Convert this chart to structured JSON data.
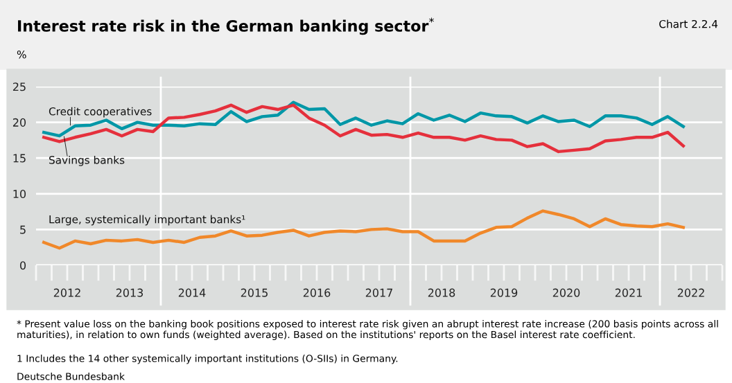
{
  "chart_data": {
    "type": "line",
    "title": "Interest rate risk in the German banking sector$^{*}$",
    "subtitle": "Chart 2.2.4",
    "ylabel": "%",
    "x": [
      2012.125,
      2012.375,
      2012.625,
      2012.875,
      2013.125,
      2013.375,
      2013.625,
      2013.875,
      2014.125,
      2014.375,
      2014.625,
      2014.875,
      2015.125,
      2015.375,
      2015.625,
      2015.875,
      2016.125,
      2016.375,
      2016.625,
      2016.875,
      2017.125,
      2017.375,
      2017.625,
      2017.875,
      2018.125,
      2018.375,
      2018.625,
      2018.875,
      2019.125,
      2019.375,
      2019.625,
      2019.875,
      2020.125,
      2020.375,
      2020.625,
      2020.875,
      2021.125,
      2021.375,
      2021.625,
      2021.875,
      2022.125,
      2022.375
    ],
    "series": [
      {
        "name": "Credit cooperatives",
        "color": "#0097a7",
        "values": [
          18.6,
          18.1,
          19.5,
          19.6,
          20.3,
          19.1,
          20.0,
          19.6,
          19.6,
          19.5,
          19.8,
          19.7,
          21.5,
          20.1,
          20.8,
          21.0,
          22.8,
          21.8,
          21.9,
          19.7,
          20.6,
          19.6,
          20.2,
          19.8,
          21.2,
          20.3,
          21.0,
          20.1,
          21.3,
          20.9,
          20.8,
          19.9,
          20.9,
          20.1,
          20.3,
          19.4,
          20.9,
          20.9,
          20.6,
          19.7,
          20.8,
          19.4
        ]
      },
      {
        "name": "Savings banks",
        "color": "#e5303c",
        "values": [
          17.9,
          17.3,
          17.9,
          18.4,
          19.0,
          18.1,
          19.0,
          18.7,
          20.6,
          20.7,
          21.1,
          21.6,
          22.4,
          21.4,
          22.2,
          21.8,
          22.4,
          20.6,
          19.6,
          18.1,
          19.0,
          18.2,
          18.3,
          17.9,
          18.5,
          17.9,
          17.9,
          17.5,
          18.1,
          17.6,
          17.5,
          16.6,
          17.0,
          15.9,
          16.1,
          16.3,
          17.4,
          17.6,
          17.9,
          17.9,
          18.6,
          16.7
        ]
      },
      {
        "name": "Large, systemically important banks¹",
        "color": "#f0882a",
        "values": [
          3.2,
          2.4,
          3.4,
          3.0,
          3.5,
          3.4,
          3.6,
          3.2,
          3.5,
          3.2,
          3.9,
          4.1,
          4.8,
          4.1,
          4.2,
          4.6,
          4.9,
          4.1,
          4.6,
          4.8,
          4.7,
          5.0,
          5.1,
          4.7,
          4.7,
          3.4,
          3.4,
          3.4,
          4.5,
          5.3,
          5.4,
          6.6,
          7.6,
          7.1,
          6.5,
          5.4,
          6.5,
          5.7,
          5.5,
          5.4,
          5.8,
          5.3
        ]
      }
    ],
    "xlim": [
      2012,
      2023
    ],
    "xticks": [
      {
        "value": 2012.5,
        "label": "2012"
      },
      {
        "value": 2013.5,
        "label": "2013"
      },
      {
        "value": 2014.5,
        "label": "2014"
      },
      {
        "value": 2015.5,
        "label": "2015"
      },
      {
        "value": 2016.5,
        "label": "2016"
      },
      {
        "value": 2017.5,
        "label": "2017"
      },
      {
        "value": 2018.5,
        "label": "2018"
      },
      {
        "value": 2019.5,
        "label": "2019"
      },
      {
        "value": 2020.5,
        "label": "2020"
      },
      {
        "value": 2021.5,
        "label": "2021"
      },
      {
        "value": 2022.5,
        "label": "2022"
      }
    ],
    "ylim": [
      0,
      25
    ],
    "yticks": [
      0,
      5,
      10,
      15,
      20,
      25
    ],
    "ref_lines": [
      {
        "axis": "x",
        "value": 2014,
        "color": "#ffffff"
      },
      {
        "axis": "x",
        "value": 2018,
        "color": "#ffffff"
      },
      {
        "axis": "x",
        "value": 2022,
        "color": "#ffffff"
      }
    ],
    "grid": "y",
    "legend": false,
    "marker": "none",
    "line_style": "solid",
    "annotations": [
      "* Present value loss on the banking book positions exposed to interest rate risk given an abrupt interest rate increase (200 basis points across all maturities), in relation to own funds (weighted average). Based on the institutions' reports on the Basel interest rate coefficient.",
      "1 Includes the 14 other systemically important institutions (O-SIIs) in Germany.",
      "Deutsche Bundesbank"
    ]
  }
}
